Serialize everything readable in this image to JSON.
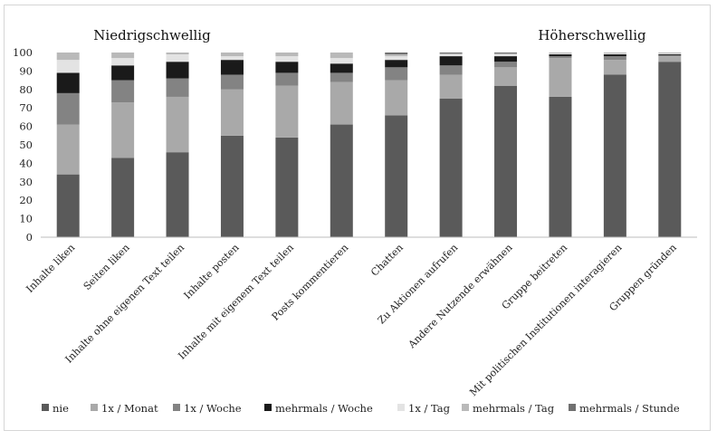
{
  "chart_data": {
    "type": "bar",
    "stacked": true,
    "categories": [
      "Inhalte liken",
      "Seiten liken",
      "Inhalte ohne eigenen Text teilen",
      "Inhalte posten",
      "Inhalte mit eigenem Text teilen",
      "Posts kommentieren",
      "Chatten",
      "Zu Aktionen aufrufen",
      "Andere Nutzende erwähnen",
      "Gruppe beitreten",
      "Mit politischen Institutionen interagieren",
      "Gruppen gründen"
    ],
    "series": [
      {
        "name": "nie",
        "color": "#5a5a5a",
        "values": [
          34,
          43,
          46,
          55,
          54,
          61,
          66,
          75,
          82,
          76,
          88,
          95
        ]
      },
      {
        "name": "1x / Monat",
        "color": "#a9a9a9",
        "values": [
          27,
          30,
          30,
          25,
          28,
          23,
          19,
          13,
          10,
          21,
          8,
          3
        ]
      },
      {
        "name": "1x / Woche",
        "color": "#838383",
        "values": [
          17,
          12,
          10,
          8,
          7,
          5,
          7,
          5,
          3,
          1,
          2,
          0.5
        ]
      },
      {
        "name": "mehrmals / Woche",
        "color": "#1a1a1a",
        "values": [
          11,
          8,
          9,
          8,
          6,
          5,
          4,
          5,
          3,
          1,
          1,
          0.5
        ]
      },
      {
        "name": "1x / Tag",
        "color": "#e3e3e3",
        "values": [
          7,
          4,
          4,
          2,
          3,
          3,
          2,
          1,
          1,
          0.5,
          0.5,
          0.5
        ]
      },
      {
        "name": "mehrmals / Tag",
        "color": "#b9b9b9",
        "values": [
          4,
          3,
          1,
          2,
          2,
          3,
          1,
          0.5,
          0.5,
          0.5,
          0.5,
          0.5
        ]
      },
      {
        "name": "mehrmals / Stunde",
        "color": "#707070",
        "values": [
          0,
          0,
          0,
          0,
          0,
          0,
          1,
          0.5,
          0.5,
          0,
          0,
          0
        ]
      }
    ],
    "ylim": [
      0,
      100
    ],
    "yticks": [
      0,
      10,
      20,
      30,
      40,
      50,
      60,
      70,
      80,
      90,
      100
    ],
    "grid": false,
    "legend_position": "bottom",
    "annotations": [
      {
        "text": "Niedrigschwellig",
        "near": "top-left"
      },
      {
        "text": "Höherschwellig",
        "near": "top-right"
      }
    ]
  }
}
